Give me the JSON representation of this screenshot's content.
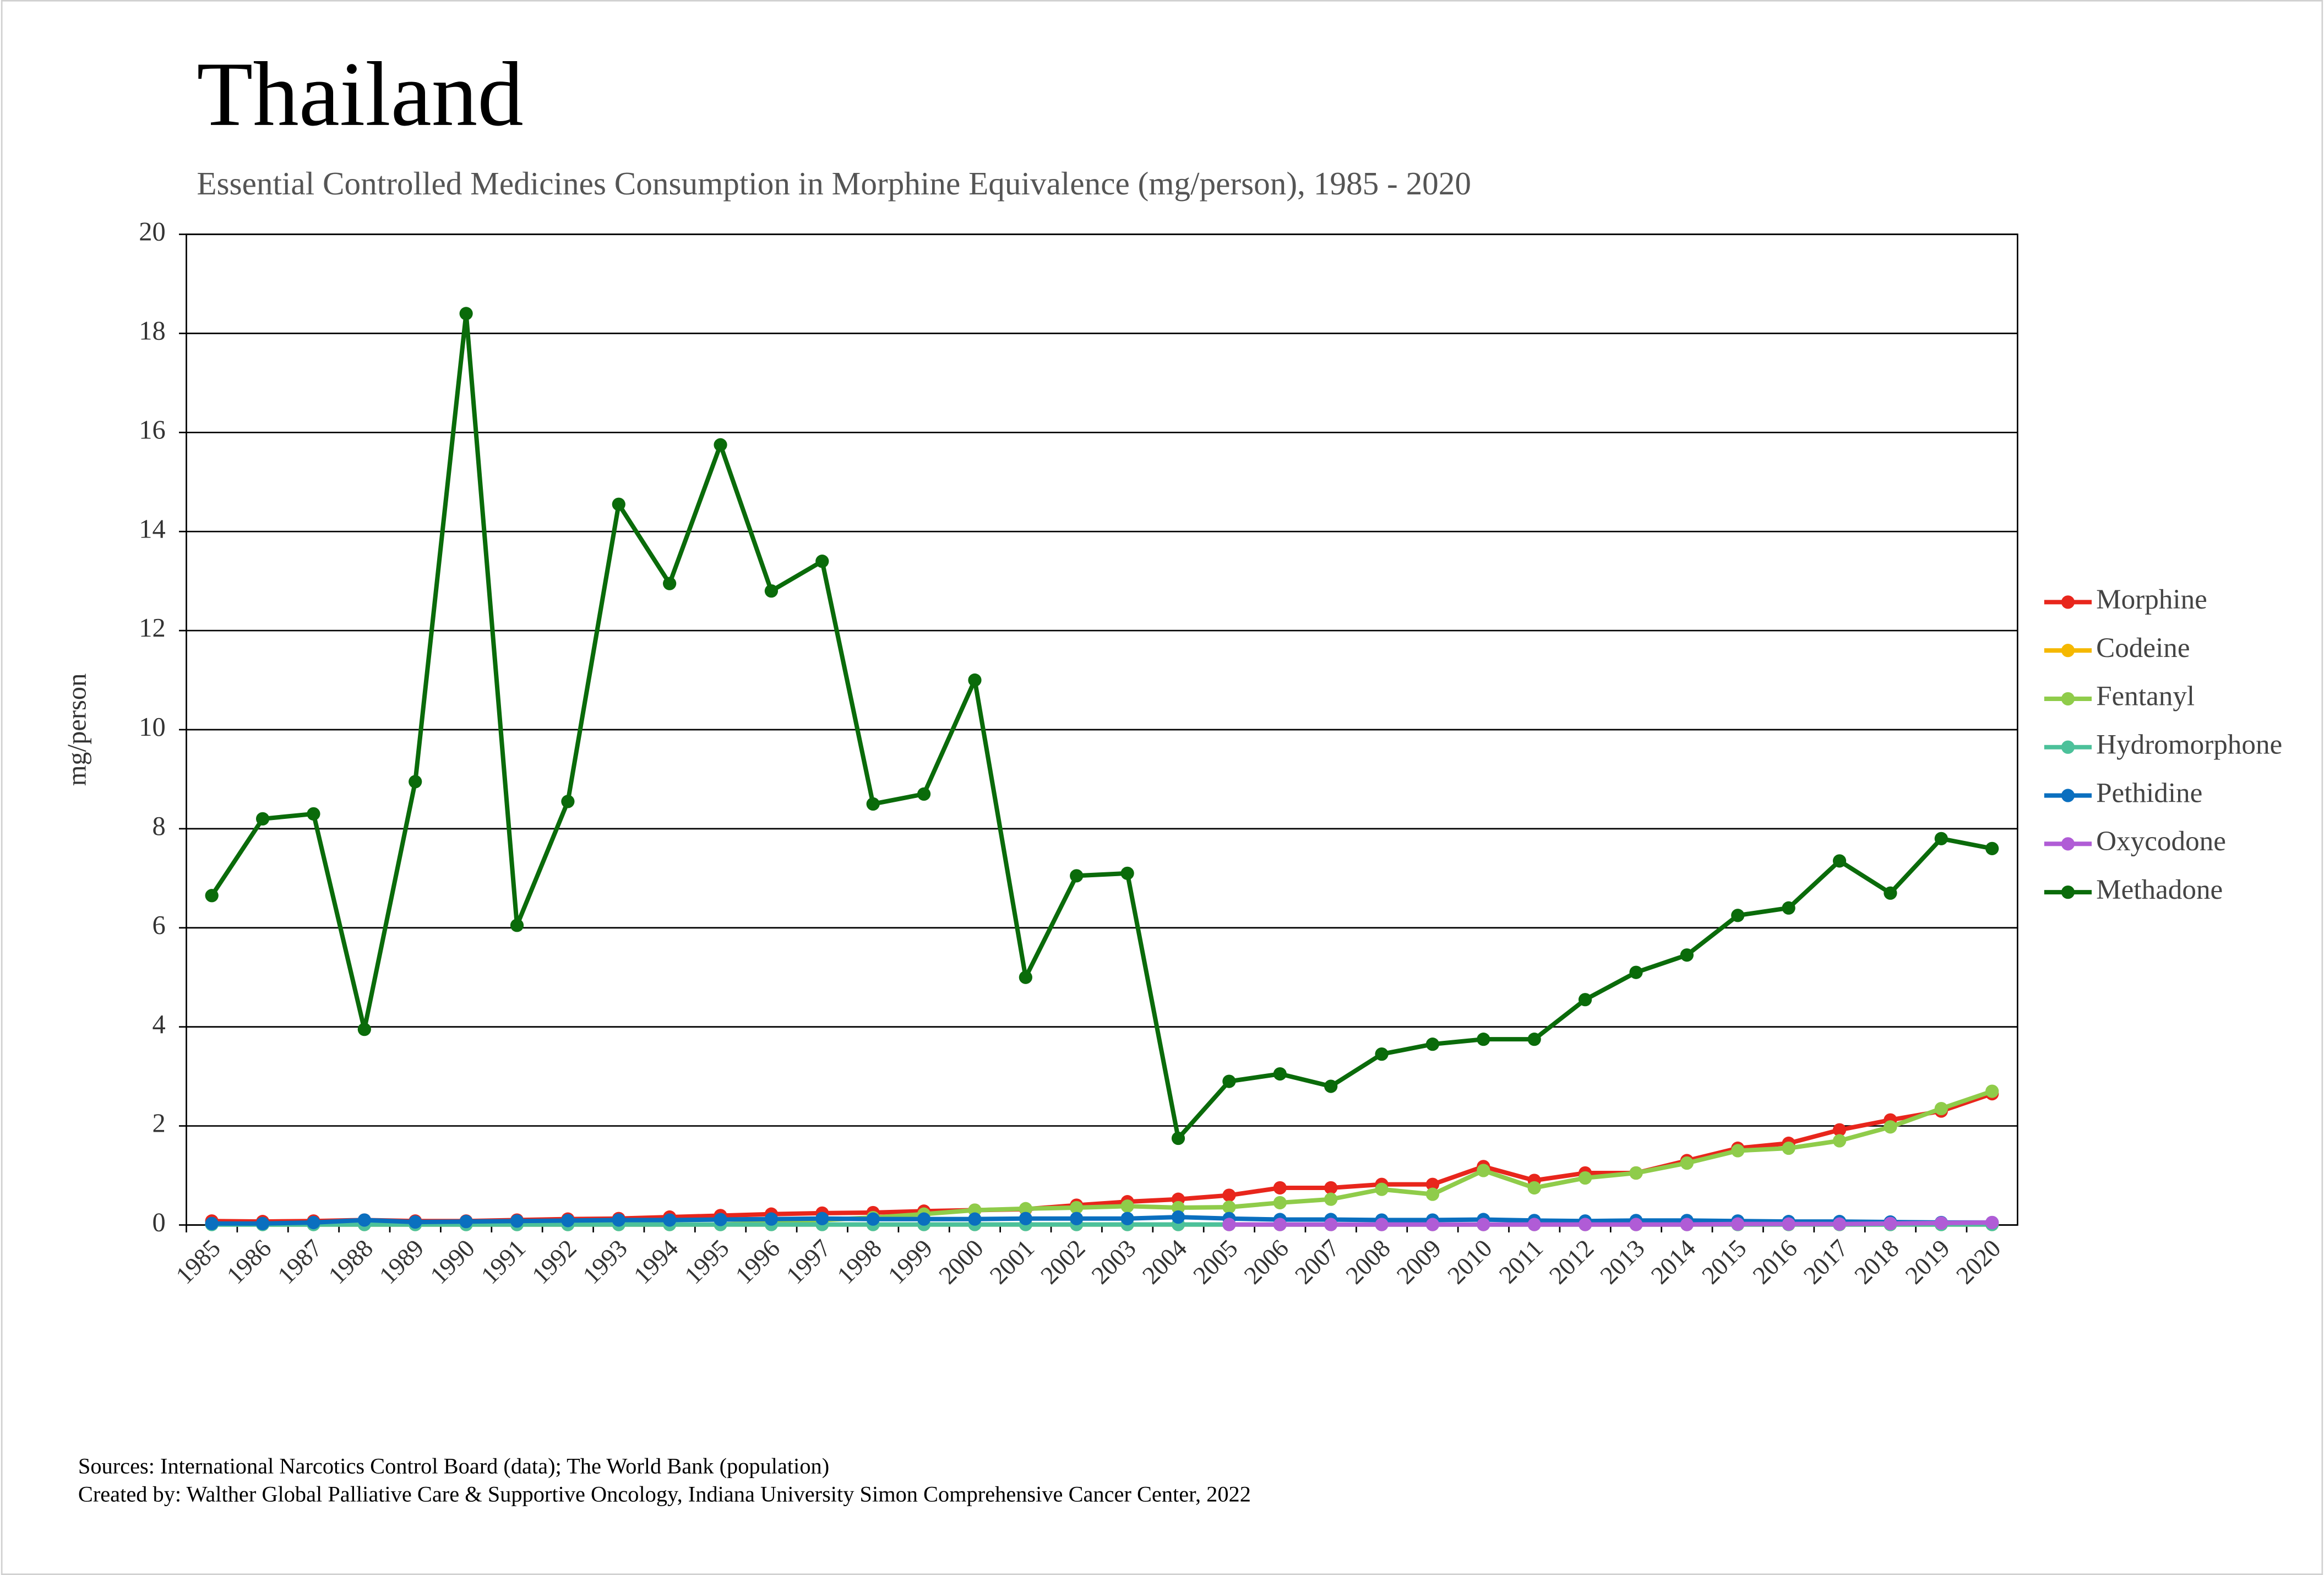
{
  "chart_data": {
    "type": "line",
    "title": "Thailand",
    "subtitle": "Essential Controlled Medicines Consumption in Morphine Equivalence (mg/person), 1985 - 2020",
    "y_label": "mg/person",
    "footnotes": [
      "Sources: International Narcotics Control Board (data); The World Bank (population)",
      "Created by: Walther Global Palliative Care & Supportive Oncology, Indiana University Simon Comprehensive Cancer Center, 2022"
    ],
    "categories": [
      "1985",
      "1986",
      "1987",
      "1988",
      "1989",
      "1990",
      "1991",
      "1992",
      "1993",
      "1994",
      "1995",
      "1996",
      "1997",
      "1998",
      "1999",
      "2000",
      "2001",
      "2002",
      "2003",
      "2004",
      "2005",
      "2006",
      "2007",
      "2008",
      "2009",
      "2010",
      "2011",
      "2012",
      "2013",
      "2014",
      "2015",
      "2016",
      "2017",
      "2018",
      "2019",
      "2020"
    ],
    "ylim": [
      0,
      20
    ],
    "yticks": [
      0,
      2,
      4,
      6,
      8,
      10,
      12,
      14,
      16,
      18,
      20
    ],
    "grid": true,
    "legend": "right",
    "series": [
      {
        "name": "Morphine",
        "color": "#e8261c",
        "values": [
          0.08,
          0.07,
          0.08,
          0.1,
          0.08,
          0.08,
          0.1,
          0.12,
          0.13,
          0.16,
          0.19,
          0.22,
          0.24,
          0.25,
          0.28,
          0.3,
          0.32,
          0.4,
          0.47,
          0.52,
          0.6,
          0.75,
          0.75,
          0.82,
          0.82,
          1.18,
          0.9,
          1.05,
          1.05,
          1.3,
          1.55,
          1.65,
          1.92,
          2.12,
          2.3,
          2.65
        ]
      },
      {
        "name": "Codeine",
        "color": "#f5b800",
        "values": [
          0.02,
          0.01,
          0.01,
          0.01,
          0.01,
          0.01,
          0.01,
          0.01,
          0.01,
          0.01,
          0.01,
          0.01,
          0.01,
          0.01,
          0.01,
          0.01,
          0.01,
          0.01,
          0.01,
          0.01,
          0.01,
          0.01,
          0.01,
          0.01,
          0.01,
          0.01,
          0.01,
          0.01,
          0.01,
          0.01,
          0.01,
          0.01,
          0.01,
          0.01,
          0.01,
          0.01
        ]
      },
      {
        "name": "Fentanyl",
        "color": "#8fcc4a",
        "values": [
          0.01,
          0.01,
          0.01,
          0.01,
          0.01,
          0.01,
          0.01,
          0.01,
          0.01,
          0.01,
          0.01,
          0.05,
          0.1,
          0.15,
          0.22,
          0.3,
          0.33,
          0.35,
          0.38,
          0.35,
          0.36,
          0.45,
          0.52,
          0.72,
          0.62,
          1.1,
          0.75,
          0.95,
          1.05,
          1.25,
          1.5,
          1.55,
          1.7,
          1.98,
          2.35,
          2.7
        ]
      },
      {
        "name": "Hydromorphone",
        "color": "#4cc19a",
        "values": [
          0.01,
          0.01,
          0.01,
          0.01,
          0.01,
          0.01,
          0.01,
          0.01,
          0.01,
          0.01,
          0.01,
          0.01,
          0.01,
          0.01,
          0.01,
          0.01,
          0.01,
          0.01,
          0.01,
          0.01,
          0.01,
          0.01,
          0.01,
          0.01,
          0.01,
          0.01,
          0.01,
          0.01,
          0.01,
          0.01,
          0.01,
          0.01,
          0.01,
          0.01,
          0.01,
          0.01
        ]
      },
      {
        "name": "Pethidine",
        "color": "#0a6fbf",
        "values": [
          0.03,
          0.03,
          0.05,
          0.1,
          0.06,
          0.07,
          0.08,
          0.09,
          0.1,
          0.1,
          0.11,
          0.12,
          0.13,
          0.12,
          0.12,
          0.12,
          0.13,
          0.13,
          0.13,
          0.16,
          0.13,
          0.11,
          0.11,
          0.1,
          0.1,
          0.11,
          0.09,
          0.08,
          0.09,
          0.09,
          0.08,
          0.07,
          0.07,
          0.06,
          0.05,
          0.05
        ]
      },
      {
        "name": "Oxycodone",
        "color": "#b05cd6",
        "values": [
          null,
          null,
          null,
          null,
          null,
          null,
          null,
          null,
          null,
          null,
          null,
          null,
          null,
          null,
          null,
          null,
          null,
          null,
          null,
          null,
          0.01,
          0.01,
          0.01,
          0.01,
          0.01,
          0.01,
          0.01,
          0.01,
          0.01,
          0.01,
          0.02,
          0.02,
          0.02,
          0.03,
          0.04,
          0.05
        ]
      },
      {
        "name": "Methadone",
        "color": "#0a6b0a",
        "values": [
          6.65,
          8.2,
          8.3,
          3.95,
          8.95,
          18.4,
          6.05,
          8.55,
          14.55,
          12.95,
          15.75,
          12.8,
          13.4,
          8.5,
          8.7,
          11.0,
          5.0,
          7.05,
          7.1,
          1.75,
          2.9,
          3.05,
          2.8,
          3.45,
          3.65,
          3.75,
          3.75,
          4.55,
          5.1,
          5.45,
          6.25,
          6.4,
          7.35,
          6.7,
          7.8,
          7.6
        ]
      }
    ]
  }
}
